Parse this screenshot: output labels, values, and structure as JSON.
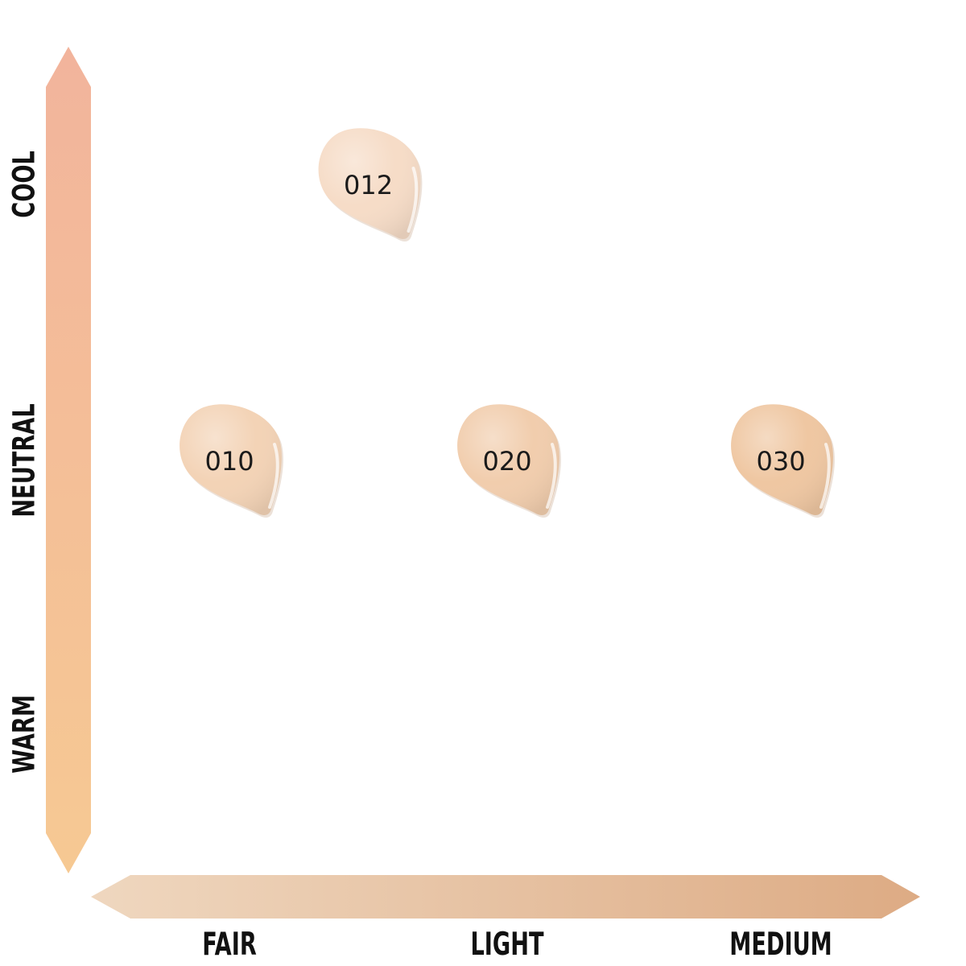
{
  "chart_data": {
    "type": "scatter",
    "x_axis": {
      "categories": [
        "FAIR",
        "LIGHT",
        "MEDIUM"
      ],
      "gradient": [
        "#efd7bf",
        "#ddab84"
      ]
    },
    "y_axis": {
      "categories": [
        "WARM",
        "NEUTRAL",
        "COOL"
      ],
      "gradient_top": "#f2b49c",
      "gradient_bottom": "#f6c993"
    },
    "points": [
      {
        "label": "012",
        "x": 1.5,
        "y": 2,
        "color": "#f6dcc7"
      },
      {
        "label": "010",
        "x": 1.0,
        "y": 1,
        "color": "#f3d3b6"
      },
      {
        "label": "020",
        "x": 2.0,
        "y": 1,
        "color": "#f1cdad"
      },
      {
        "label": "030",
        "x": 3.0,
        "y": 1,
        "color": "#efc7a2"
      }
    ]
  }
}
